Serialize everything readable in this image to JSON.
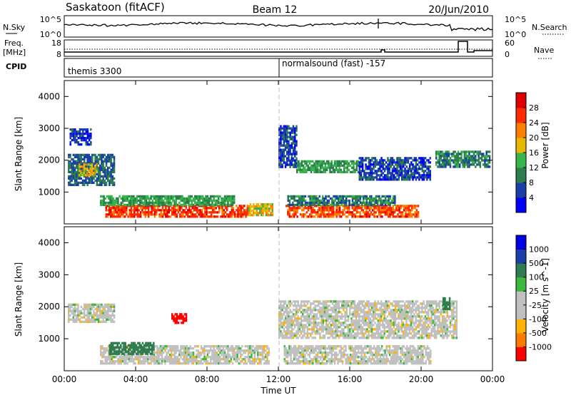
{
  "header": {
    "station": "Saskatoon (fitACF)",
    "beam": "Beam 12",
    "date": "20/Jun/2010"
  },
  "noise_panel": {
    "left_label": "N.Sky",
    "right_label": "N.Search",
    "left_ticks": [
      "10^5",
      "10^0"
    ],
    "right_ticks": [
      "10^5",
      "10^0"
    ]
  },
  "freq_panel": {
    "left_label_1": "Freq.",
    "left_label_2": "[MHz]",
    "right_label": "Nave",
    "left_ticks": [
      "18",
      "8"
    ],
    "right_ticks": [
      "60",
      "0"
    ]
  },
  "cpid_panel": {
    "label": "CPID",
    "program_1": "themis 3300",
    "program_2": "normalsound (fast) -157"
  },
  "colors": {
    "power": [
      "#0000ff",
      "#1a3fa8",
      "#2e7d4f",
      "#37b44a",
      "#e6b800",
      "#ff8000",
      "#ff2a00",
      "#e00000"
    ],
    "velocity": [
      "#ff0000",
      "#ff7a00",
      "#ffb300",
      "#c0c0c0",
      "#c0c0c0",
      "#3cb83c",
      "#2e7d4f",
      "#1a3fa8",
      "#0000e6"
    ]
  },
  "chart_data": [
    {
      "type": "heatmap",
      "title": "",
      "xlabel": "Time UT",
      "ylabel": "Slant Range [km]",
      "xticks": [
        "00:00",
        "04:00",
        "08:00",
        "12:00",
        "16:00",
        "20:00",
        "00:00"
      ],
      "yticks": [
        "1000",
        "2000",
        "3000",
        "4000"
      ],
      "ylim": [
        0,
        4500
      ],
      "colorbar": {
        "label": "Power [dB]",
        "ticks": [
          "4",
          "8",
          "12",
          "16",
          "20",
          "24",
          "28"
        ],
        "range": [
          0,
          32
        ]
      },
      "regions": [
        {
          "t0": 2.3,
          "t1": 10.3,
          "r0": 250,
          "r1": 600,
          "value": 26
        },
        {
          "t0": 10.3,
          "t1": 11.7,
          "r0": 250,
          "r1": 650,
          "value": 18
        },
        {
          "t0": 12.4,
          "t1": 19.8,
          "r0": 250,
          "r1": 600,
          "value": 25
        },
        {
          "t0": 2.0,
          "t1": 9.5,
          "r0": 600,
          "r1": 900,
          "value": 12
        },
        {
          "t0": 12.5,
          "t1": 18.5,
          "r0": 600,
          "r1": 900,
          "value": 10
        },
        {
          "t0": 0.2,
          "t1": 2.8,
          "r0": 1200,
          "r1": 2200,
          "value": 8
        },
        {
          "t0": 0.8,
          "t1": 1.8,
          "r0": 1500,
          "r1": 1900,
          "value": 18
        },
        {
          "t0": 12.0,
          "t1": 13.0,
          "r0": 1800,
          "r1": 3100,
          "value": 6
        },
        {
          "t0": 13.0,
          "t1": 16.5,
          "r0": 1600,
          "r1": 2000,
          "value": 12
        },
        {
          "t0": 16.5,
          "t1": 20.5,
          "r0": 1400,
          "r1": 2100,
          "value": 6
        },
        {
          "t0": 20.8,
          "t1": 23.8,
          "r0": 1800,
          "r1": 2300,
          "value": 10
        },
        {
          "t0": 0.3,
          "t1": 1.5,
          "r0": 2500,
          "r1": 3000,
          "value": 5
        }
      ]
    },
    {
      "type": "heatmap",
      "title": "",
      "xlabel": "Time UT",
      "ylabel": "Slant Range [km]",
      "xticks": [
        "00:00",
        "04:00",
        "08:00",
        "12:00",
        "16:00",
        "20:00",
        "00:00"
      ],
      "yticks": [
        "1000",
        "2000",
        "3000",
        "4000"
      ],
      "ylim": [
        0,
        4500
      ],
      "colorbar": {
        "label": "Velocity [m s^-1]",
        "ticks": [
          "1000",
          "500",
          "100",
          "25",
          "-25",
          "-100",
          "-500",
          "-1000"
        ],
        "range": [
          -1000,
          1000
        ]
      },
      "regions": [
        {
          "t0": 2.0,
          "t1": 11.5,
          "r0": 250,
          "r1": 800,
          "value": 0
        },
        {
          "t0": 12.3,
          "t1": 20.5,
          "r0": 250,
          "r1": 800,
          "value": 0
        },
        {
          "t0": 0.2,
          "t1": 2.8,
          "r0": 1500,
          "r1": 2100,
          "value": 0
        },
        {
          "t0": 2.5,
          "t1": 5.0,
          "r0": 500,
          "r1": 900,
          "value": 150
        },
        {
          "t0": 12.0,
          "t1": 22.0,
          "r0": 1000,
          "r1": 2200,
          "value": 0
        },
        {
          "t0": 21.2,
          "t1": 21.6,
          "r0": 1900,
          "r1": 2300,
          "value": 300
        },
        {
          "t0": 6.0,
          "t1": 6.8,
          "r0": 1500,
          "r1": 1800,
          "value": -700
        }
      ]
    }
  ]
}
